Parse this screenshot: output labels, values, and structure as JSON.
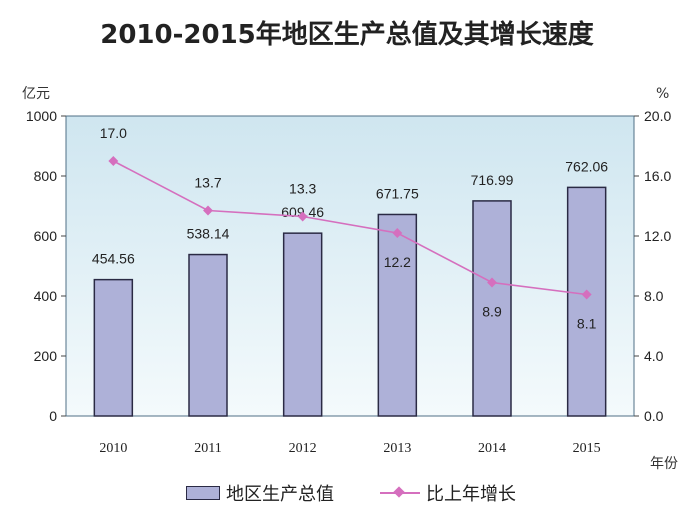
{
  "chart_data": {
    "type": "bar+line",
    "title": "2010-2015年地区生产总值及其增长速度",
    "categories": [
      "2010",
      "2011",
      "2012",
      "2013",
      "2014",
      "2015"
    ],
    "series": [
      {
        "name": "地区生产总值",
        "type": "bar",
        "axis": "left",
        "values": [
          454.56,
          538.14,
          609.46,
          671.75,
          716.99,
          762.06
        ],
        "labels": [
          "454.56",
          "538.14",
          "609.46",
          "671.75",
          "716.99",
          "762.06"
        ]
      },
      {
        "name": "比上年增长",
        "type": "line",
        "axis": "right",
        "values": [
          17.0,
          13.7,
          13.3,
          12.2,
          8.9,
          8.1
        ],
        "labels": [
          "17.0",
          "13.7",
          "13.3",
          "12.2",
          "8.9",
          "8.1"
        ]
      }
    ],
    "ylabel_left": "亿元",
    "ylabel_right": "%",
    "xlabel": "年份",
    "ylim_left": [
      0,
      1000
    ],
    "ylim_right": [
      0,
      20
    ],
    "yticks_left": [
      "0",
      "200",
      "400",
      "600",
      "800",
      "1000"
    ],
    "yticks_right": [
      "0.0",
      "4.0",
      "8.0",
      "12.0",
      "16.0",
      "20.0"
    ],
    "grid": false,
    "legend": "bottom",
    "colors": {
      "bar_fill": "#aeb1d8",
      "bar_stroke": "#2a2a44",
      "line": "#d56fbe",
      "plot_bg_top": "#cfe6f0",
      "plot_bg_bottom": "#f4fafc"
    }
  }
}
